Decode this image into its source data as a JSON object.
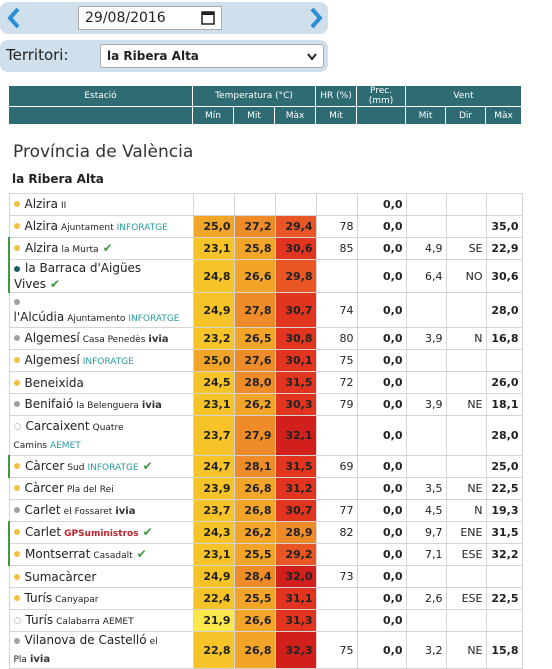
{
  "nav": {
    "date": "29/08/2016"
  },
  "filter": {
    "label": "Territori:",
    "value": "la Ribera Alta"
  },
  "table": {
    "groups": [
      "Estació",
      "Temperatura (°C)",
      "HR (%)",
      "Prec. (mm)",
      "Vent"
    ],
    "sub": [
      "Mín",
      "Mit",
      "Màx",
      "Mit",
      "Mit",
      "Dir",
      "Màx"
    ]
  },
  "province": "Província de València",
  "region": "la Ribera Alta",
  "rows": [
    {
      "name": "Alzira",
      "sub": "II",
      "dot": "#f0c040",
      "cells": [
        null,
        null,
        null,
        null,
        "0,0",
        null,
        null,
        null
      ]
    },
    {
      "name": "Alzira",
      "sub": "Ajuntament",
      "network": "INFORATGE",
      "dot": "#f0c040",
      "cells": [
        "25,0",
        "27,2",
        "29,4",
        "78",
        "0,0",
        null,
        null,
        "35,0"
      ]
    },
    {
      "name": "Alzira",
      "sub": "la Murta",
      "dot": "#f0c040",
      "verified": true,
      "cells": [
        "23,1",
        "25,8",
        "30,6",
        "85",
        "0,0",
        "4,9",
        "SE",
        "22,9"
      ]
    },
    {
      "name": "la Barraca d'Aigües Vives",
      "dot": "#1e5f66",
      "verified": true,
      "cells": [
        "24,8",
        "26,6",
        "29,8",
        null,
        "0,0",
        "6,4",
        "NO",
        "30,6"
      ]
    },
    {
      "name": "l'Alcúdia",
      "sub": "Ajuntamento",
      "network": "INFORATGE",
      "dot": "#a0a0a0",
      "cells": [
        "24,9",
        "27,8",
        "30,7",
        "74",
        "0,0",
        null,
        null,
        "28,0"
      ]
    },
    {
      "name": "Algemesí",
      "sub": "Casa Penedès",
      "network": "ivia",
      "dot": "#a0a0a0",
      "cells": [
        "23,2",
        "26,5",
        "30,8",
        "80",
        "0,0",
        "3,9",
        "N",
        "16,8"
      ]
    },
    {
      "name": "Algemesí",
      "network": "INFORATGE",
      "dot": "#f0c040",
      "cells": [
        "25,0",
        "27,6",
        "30,1",
        "75",
        "0,0",
        null,
        null,
        null
      ]
    },
    {
      "name": "Beneixida",
      "dot": "#f0c040",
      "cells": [
        "24,5",
        "28,0",
        "31,5",
        "72",
        "0,0",
        null,
        null,
        "26,0"
      ]
    },
    {
      "name": "Benifaió",
      "sub": "la Belenguera",
      "network": "ivia",
      "dot": "#a0a0a0",
      "cells": [
        "23,1",
        "26,2",
        "30,3",
        "79",
        "0,0",
        "3,9",
        "NE",
        "18,1"
      ]
    },
    {
      "name": "Carcaixent",
      "sub": "Quatre Camins",
      "network": "AEMET",
      "dot": "none",
      "cells": [
        "23,7",
        "27,9",
        "32,1",
        null,
        "0,0",
        null,
        null,
        "28,0"
      ]
    },
    {
      "name": "Càrcer",
      "sub": "Sud",
      "network": "INFORATGE",
      "dot": "#f0c040",
      "verified": true,
      "cells": [
        "24,7",
        "28,1",
        "31,5",
        "69",
        "0,0",
        null,
        null,
        "25,0"
      ]
    },
    {
      "name": "Càrcer",
      "sub": "Pla del Rei",
      "dot": "#f0c040",
      "cells": [
        "23,9",
        "26,8",
        "31,2",
        null,
        "0,0",
        "3,5",
        "NE",
        "22,5"
      ]
    },
    {
      "name": "Carlet",
      "sub": "el Fossaret",
      "network": "ivia",
      "dot": "#a0a0a0",
      "cells": [
        "23,7",
        "26,8",
        "30,7",
        "77",
        "0,0",
        "4,5",
        "N",
        "19,3"
      ]
    },
    {
      "name": "Carlet",
      "network": "GPSuministros",
      "dot": "#f0c040",
      "verified": true,
      "cells": [
        "24,3",
        "26,2",
        "28,9",
        "82",
        "0,0",
        "9,7",
        "ENE",
        "31,5"
      ]
    },
    {
      "name": "Montserrat",
      "sub": "Casadalt",
      "dot": "#f0c040",
      "verified": true,
      "cells": [
        "23,1",
        "25,5",
        "29,2",
        null,
        "0,0",
        "7,1",
        "ESE",
        "32,2"
      ]
    },
    {
      "name": "Sumacàrcer",
      "dot": "#f0c040",
      "cells": [
        "24,9",
        "28,4",
        "32,0",
        "73",
        "0,0",
        null,
        null,
        null
      ]
    },
    {
      "name": "Turís",
      "sub": "Canyapar",
      "dot": "#f0c040",
      "cells": [
        "22,4",
        "25,5",
        "31,1",
        null,
        "0,0",
        "2,6",
        "ESE",
        "22,5"
      ]
    },
    {
      "name": "Turís",
      "sub": "Calabarra AEMET",
      "dot": "none",
      "cells": [
        "21,9",
        "26,6",
        "31,3",
        null,
        "0,0",
        null,
        null,
        null
      ]
    },
    {
      "name": "Vilanova de Castelló",
      "sub": "el Pla",
      "network": "ivia",
      "dot": "#a0a0a0",
      "cells": [
        "22,8",
        "26,8",
        "32,3",
        "75",
        "0,0",
        "3,2",
        "NE",
        "15,8"
      ]
    }
  ]
}
